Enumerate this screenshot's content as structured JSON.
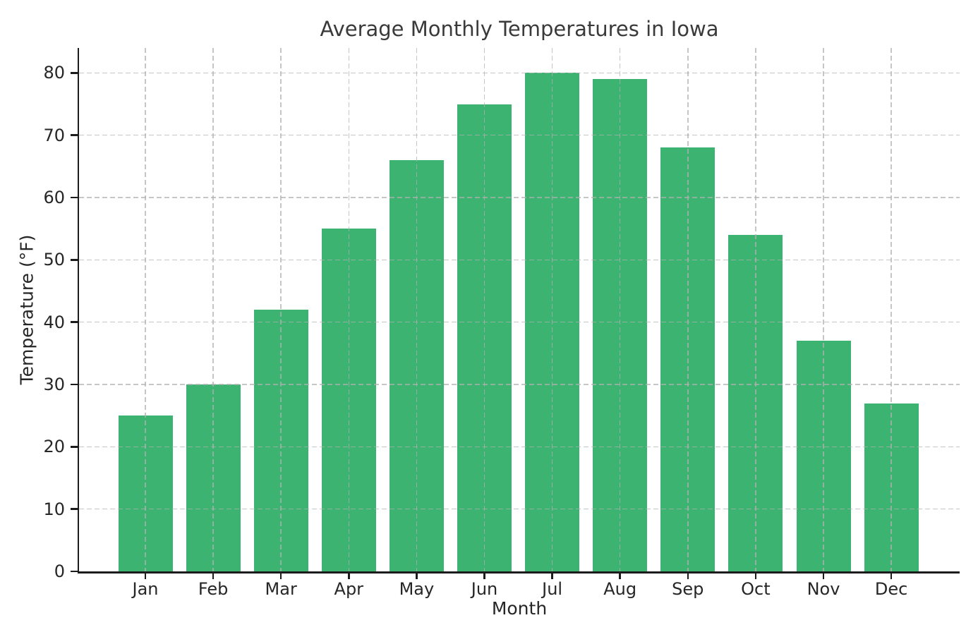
{
  "chart_data": {
    "type": "bar",
    "title": "Average Monthly Temperatures in Iowa",
    "xlabel": "Month",
    "ylabel": "Temperature (°F)",
    "categories": [
      "Jan",
      "Feb",
      "Mar",
      "Apr",
      "May",
      "Jun",
      "Jul",
      "Aug",
      "Sep",
      "Oct",
      "Nov",
      "Dec"
    ],
    "values": [
      25,
      30,
      42,
      55,
      66,
      75,
      80,
      79,
      68,
      54,
      37,
      27
    ],
    "ylim": [
      0,
      84
    ],
    "yticks": [
      0,
      10,
      20,
      30,
      40,
      50,
      60,
      70,
      80
    ],
    "legend": "none",
    "grid": "dashed horizontal and vertical lines, drawn over bars",
    "bar_color": "#3cb371",
    "grid_color": "#b0b0b0",
    "spine_color": "#1c1c1c",
    "text_color": "#262626",
    "background_color": "#ffffff"
  }
}
